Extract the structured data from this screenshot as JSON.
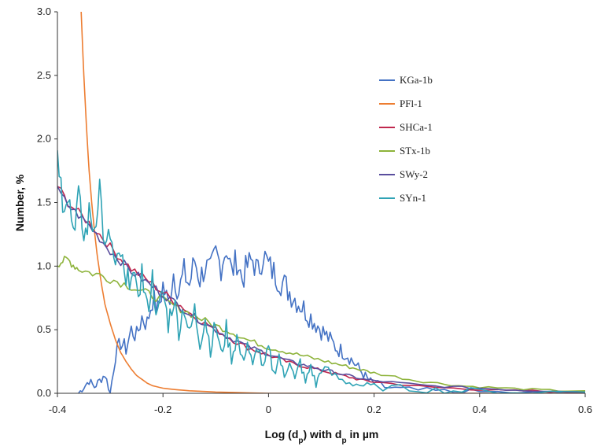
{
  "chart_data": {
    "type": "line",
    "xlabel": "Log (d",
    "xlabel_sub": "p",
    "xlabel_mid": ") with d",
    "xlabel_sub2": "p",
    "xlabel_end": " in µm",
    "ylabel": "Number, %",
    "xlim": [
      -0.4,
      0.6
    ],
    "ylim": [
      0.0,
      3.0
    ],
    "xticks": [
      -0.4,
      -0.2,
      0,
      0.2,
      0.4,
      0.6
    ],
    "xtick_labels": [
      "-0.4",
      "-0.2",
      "0",
      "0.2",
      "0.4",
      "0.6"
    ],
    "yticks": [
      0.0,
      0.5,
      1.0,
      1.5,
      2.0,
      2.5,
      3.0
    ],
    "ytick_labels": [
      "0.0",
      "0.5",
      "1.0",
      "1.5",
      "2.0",
      "2.5",
      "3.0"
    ],
    "grid": false,
    "legend_position": "upper-right",
    "series": [
      {
        "name": "KGa-1b",
        "color": "#4472C4",
        "points": [
          [
            -0.36,
            0.0
          ],
          [
            -0.35,
            0.05
          ],
          [
            -0.34,
            0.1
          ],
          [
            -0.33,
            0.05
          ],
          [
            -0.32,
            0.1
          ],
          [
            -0.31,
            0.15
          ],
          [
            -0.3,
            0.0
          ],
          [
            -0.29,
            0.3
          ],
          [
            -0.28,
            0.4
          ],
          [
            -0.27,
            0.35
          ],
          [
            -0.26,
            0.5
          ],
          [
            -0.25,
            0.45
          ],
          [
            -0.24,
            0.6
          ],
          [
            -0.23,
            0.55
          ],
          [
            -0.22,
            0.75
          ],
          [
            -0.21,
            0.65
          ],
          [
            -0.2,
            0.85
          ],
          [
            -0.19,
            0.7
          ],
          [
            -0.18,
            0.95
          ],
          [
            -0.17,
            0.8
          ],
          [
            -0.16,
            0.95
          ],
          [
            -0.15,
            0.85
          ],
          [
            -0.14,
            1.05
          ],
          [
            -0.13,
            0.9
          ],
          [
            -0.12,
            1.0
          ],
          [
            -0.11,
            0.95
          ],
          [
            -0.1,
            1.1
          ],
          [
            -0.09,
            1.0
          ],
          [
            -0.08,
            1.15
          ],
          [
            -0.07,
            0.95
          ],
          [
            -0.06,
            1.05
          ],
          [
            -0.05,
            0.9
          ],
          [
            -0.04,
            1.0
          ],
          [
            -0.03,
            1.05
          ],
          [
            -0.02,
            0.95
          ],
          [
            -0.01,
            1.1
          ],
          [
            0.0,
            1.0
          ],
          [
            0.01,
            0.95
          ],
          [
            0.02,
            0.9
          ],
          [
            0.03,
            0.85
          ],
          [
            0.04,
            0.8
          ],
          [
            0.05,
            0.75
          ],
          [
            0.06,
            0.7
          ],
          [
            0.07,
            0.65
          ],
          [
            0.08,
            0.6
          ],
          [
            0.09,
            0.55
          ],
          [
            0.1,
            0.5
          ],
          [
            0.11,
            0.45
          ],
          [
            0.12,
            0.4
          ],
          [
            0.13,
            0.35
          ],
          [
            0.14,
            0.33
          ],
          [
            0.15,
            0.3
          ],
          [
            0.16,
            0.25
          ],
          [
            0.17,
            0.2
          ],
          [
            0.18,
            0.15
          ],
          [
            0.19,
            0.1
          ],
          [
            0.2,
            0.08
          ],
          [
            0.22,
            0.05
          ],
          [
            0.25,
            0.03
          ],
          [
            0.3,
            0.02
          ],
          [
            0.35,
            0.01
          ],
          [
            0.4,
            0.01
          ],
          [
            0.5,
            0.0
          ],
          [
            0.6,
            0.0
          ]
        ]
      },
      {
        "name": "PFl-1",
        "color": "#ED7D31",
        "points": [
          [
            -0.355,
            3.0
          ],
          [
            -0.35,
            2.5
          ],
          [
            -0.345,
            2.1
          ],
          [
            -0.34,
            1.75
          ],
          [
            -0.335,
            1.5
          ],
          [
            -0.33,
            1.28
          ],
          [
            -0.325,
            1.1
          ],
          [
            -0.32,
            0.95
          ],
          [
            -0.315,
            0.82
          ],
          [
            -0.31,
            0.7
          ],
          [
            -0.3,
            0.55
          ],
          [
            -0.29,
            0.42
          ],
          [
            -0.28,
            0.32
          ],
          [
            -0.27,
            0.25
          ],
          [
            -0.26,
            0.19
          ],
          [
            -0.25,
            0.14
          ],
          [
            -0.24,
            0.11
          ],
          [
            -0.23,
            0.08
          ],
          [
            -0.22,
            0.06
          ],
          [
            -0.2,
            0.04
          ],
          [
            -0.18,
            0.03
          ],
          [
            -0.15,
            0.02
          ],
          [
            -0.1,
            0.01
          ],
          [
            0.0,
            0.0
          ],
          [
            0.6,
            0.0
          ]
        ]
      },
      {
        "name": "SHCa-1",
        "color": "#C0284E",
        "points": [
          [
            -0.4,
            1.63
          ],
          [
            -0.38,
            1.5
          ],
          [
            -0.36,
            1.42
          ],
          [
            -0.34,
            1.34
          ],
          [
            -0.32,
            1.25
          ],
          [
            -0.3,
            1.15
          ],
          [
            -0.28,
            1.06
          ],
          [
            -0.26,
            0.98
          ],
          [
            -0.24,
            0.92
          ],
          [
            -0.22,
            0.86
          ],
          [
            -0.2,
            0.79
          ],
          [
            -0.18,
            0.73
          ],
          [
            -0.16,
            0.67
          ],
          [
            -0.14,
            0.6
          ],
          [
            -0.12,
            0.55
          ],
          [
            -0.1,
            0.5
          ],
          [
            -0.08,
            0.45
          ],
          [
            -0.06,
            0.4
          ],
          [
            -0.04,
            0.36
          ],
          [
            -0.02,
            0.33
          ],
          [
            0.0,
            0.3
          ],
          [
            0.02,
            0.27
          ],
          [
            0.04,
            0.24
          ],
          [
            0.06,
            0.22
          ],
          [
            0.08,
            0.2
          ],
          [
            0.1,
            0.18
          ],
          [
            0.12,
            0.16
          ],
          [
            0.14,
            0.14
          ],
          [
            0.16,
            0.12
          ],
          [
            0.18,
            0.1
          ],
          [
            0.2,
            0.09
          ],
          [
            0.25,
            0.07
          ],
          [
            0.3,
            0.05
          ],
          [
            0.35,
            0.04
          ],
          [
            0.4,
            0.03
          ],
          [
            0.45,
            0.02
          ],
          [
            0.5,
            0.02
          ],
          [
            0.55,
            0.01
          ],
          [
            0.6,
            0.01
          ]
        ]
      },
      {
        "name": "STx-1b",
        "color": "#8DB33A",
        "points": [
          [
            -0.4,
            1.02
          ],
          [
            -0.39,
            1.04
          ],
          [
            -0.38,
            1.05
          ],
          [
            -0.37,
            1.01
          ],
          [
            -0.36,
            0.98
          ],
          [
            -0.34,
            0.95
          ],
          [
            -0.32,
            0.93
          ],
          [
            -0.3,
            0.9
          ],
          [
            -0.28,
            0.87
          ],
          [
            -0.26,
            0.84
          ],
          [
            -0.24,
            0.8
          ],
          [
            -0.22,
            0.77
          ],
          [
            -0.2,
            0.73
          ],
          [
            -0.18,
            0.69
          ],
          [
            -0.16,
            0.65
          ],
          [
            -0.14,
            0.61
          ],
          [
            -0.12,
            0.57
          ],
          [
            -0.1,
            0.53
          ],
          [
            -0.08,
            0.5
          ],
          [
            -0.06,
            0.46
          ],
          [
            -0.04,
            0.42
          ],
          [
            -0.02,
            0.39
          ],
          [
            0.0,
            0.36
          ],
          [
            0.02,
            0.34
          ],
          [
            0.04,
            0.32
          ],
          [
            0.06,
            0.3
          ],
          [
            0.08,
            0.28
          ],
          [
            0.1,
            0.26
          ],
          [
            0.12,
            0.24
          ],
          [
            0.14,
            0.22
          ],
          [
            0.16,
            0.2
          ],
          [
            0.18,
            0.18
          ],
          [
            0.2,
            0.16
          ],
          [
            0.24,
            0.13
          ],
          [
            0.28,
            0.1
          ],
          [
            0.32,
            0.08
          ],
          [
            0.36,
            0.06
          ],
          [
            0.4,
            0.05
          ],
          [
            0.45,
            0.04
          ],
          [
            0.5,
            0.03
          ],
          [
            0.55,
            0.02
          ],
          [
            0.6,
            0.02
          ]
        ]
      },
      {
        "name": "SWy-2",
        "color": "#5A4E9E",
        "points": [
          [
            -0.4,
            1.6
          ],
          [
            -0.38,
            1.48
          ],
          [
            -0.36,
            1.4
          ],
          [
            -0.34,
            1.32
          ],
          [
            -0.32,
            1.22
          ],
          [
            -0.3,
            1.12
          ],
          [
            -0.28,
            1.04
          ],
          [
            -0.26,
            0.96
          ],
          [
            -0.24,
            0.9
          ],
          [
            -0.22,
            0.84
          ],
          [
            -0.2,
            0.78
          ],
          [
            -0.18,
            0.72
          ],
          [
            -0.16,
            0.66
          ],
          [
            -0.14,
            0.6
          ],
          [
            -0.12,
            0.55
          ],
          [
            -0.1,
            0.5
          ],
          [
            -0.08,
            0.45
          ],
          [
            -0.06,
            0.41
          ],
          [
            -0.04,
            0.37
          ],
          [
            -0.02,
            0.34
          ],
          [
            0.0,
            0.31
          ],
          [
            0.02,
            0.28
          ],
          [
            0.04,
            0.25
          ],
          [
            0.06,
            0.23
          ],
          [
            0.08,
            0.21
          ],
          [
            0.1,
            0.19
          ],
          [
            0.12,
            0.17
          ],
          [
            0.14,
            0.15
          ],
          [
            0.16,
            0.13
          ],
          [
            0.18,
            0.11
          ],
          [
            0.2,
            0.1
          ],
          [
            0.25,
            0.08
          ],
          [
            0.3,
            0.06
          ],
          [
            0.35,
            0.05
          ],
          [
            0.4,
            0.04
          ],
          [
            0.45,
            0.03
          ],
          [
            0.5,
            0.02
          ],
          [
            0.55,
            0.02
          ],
          [
            0.6,
            0.01
          ]
        ]
      },
      {
        "name": "SYn-1",
        "color": "#2FA3B5",
        "points": [
          [
            -0.4,
            1.95
          ],
          [
            -0.39,
            1.5
          ],
          [
            -0.38,
            1.6
          ],
          [
            -0.37,
            1.3
          ],
          [
            -0.36,
            1.55
          ],
          [
            -0.35,
            1.2
          ],
          [
            -0.34,
            1.4
          ],
          [
            -0.33,
            1.3
          ],
          [
            -0.32,
            1.65
          ],
          [
            -0.31,
            1.1
          ],
          [
            -0.3,
            1.25
          ],
          [
            -0.29,
            0.95
          ],
          [
            -0.28,
            1.1
          ],
          [
            -0.27,
            0.8
          ],
          [
            -0.26,
            1.0
          ],
          [
            -0.25,
            0.75
          ],
          [
            -0.24,
            0.95
          ],
          [
            -0.23,
            0.65
          ],
          [
            -0.22,
            0.9
          ],
          [
            -0.21,
            0.6
          ],
          [
            -0.2,
            0.8
          ],
          [
            -0.19,
            0.55
          ],
          [
            -0.18,
            0.75
          ],
          [
            -0.17,
            0.5
          ],
          [
            -0.16,
            0.7
          ],
          [
            -0.15,
            0.45
          ],
          [
            -0.14,
            0.65
          ],
          [
            -0.13,
            0.4
          ],
          [
            -0.12,
            0.6
          ],
          [
            -0.11,
            0.35
          ],
          [
            -0.1,
            0.55
          ],
          [
            -0.09,
            0.3
          ],
          [
            -0.08,
            0.5
          ],
          [
            -0.07,
            0.28
          ],
          [
            -0.06,
            0.45
          ],
          [
            -0.05,
            0.25
          ],
          [
            -0.04,
            0.4
          ],
          [
            -0.03,
            0.2
          ],
          [
            -0.02,
            0.38
          ],
          [
            -0.01,
            0.18
          ],
          [
            0.0,
            0.35
          ],
          [
            0.01,
            0.15
          ],
          [
            0.02,
            0.3
          ],
          [
            0.03,
            0.12
          ],
          [
            0.04,
            0.28
          ],
          [
            0.05,
            0.1
          ],
          [
            0.06,
            0.25
          ],
          [
            0.07,
            0.08
          ],
          [
            0.08,
            0.22
          ],
          [
            0.09,
            0.06
          ],
          [
            0.1,
            0.2
          ],
          [
            0.12,
            0.15
          ],
          [
            0.14,
            0.1
          ],
          [
            0.16,
            0.08
          ],
          [
            0.18,
            0.06
          ],
          [
            0.2,
            0.05
          ],
          [
            0.25,
            0.04
          ],
          [
            0.3,
            0.03
          ],
          [
            0.35,
            0.02
          ],
          [
            0.4,
            0.02
          ],
          [
            0.5,
            0.01
          ],
          [
            0.6,
            0.01
          ]
        ]
      }
    ]
  }
}
